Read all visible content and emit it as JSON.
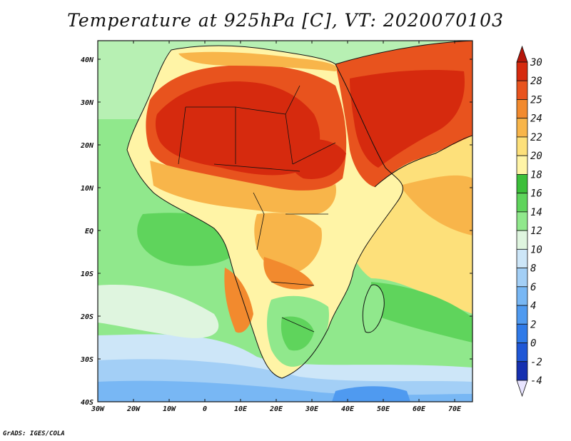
{
  "title": "Temperature at 925hPa [C], VT: 2020070103",
  "credit": "GrADS: IGES/COLA",
  "axes": {
    "lon_ticks": [
      "30W",
      "20W",
      "10W",
      "0",
      "10E",
      "20E",
      "30E",
      "40E",
      "50E",
      "60E",
      "70E"
    ],
    "lat_ticks": [
      "40N",
      "30N",
      "20N",
      "10N",
      "EQ",
      "10S",
      "20S",
      "30S",
      "40S"
    ]
  },
  "colorbar": {
    "levels": [
      "-4",
      "-2",
      "0",
      "2",
      "4",
      "6",
      "8",
      "10",
      "12",
      "14",
      "16",
      "18",
      "20",
      "22",
      "24",
      "25",
      "28",
      "30"
    ],
    "colors": [
      "#0a1a6e",
      "#1530b0",
      "#1f57d6",
      "#2f7ae8",
      "#4f9af0",
      "#78b7f4",
      "#a3cff6",
      "#cde6f8",
      "#dff5df",
      "#90e88c",
      "#5fd45c",
      "#3cbf3a",
      "#fff4a6",
      "#fde07a",
      "#f8b54a",
      "#f28a2e",
      "#e8531e",
      "#d62a0e",
      "#b5160a"
    ]
  },
  "palette": {
    "very_hot": "#d62a0e",
    "hot": "#e8531e",
    "warm": "#f28a2e",
    "mild": "#f8b54a",
    "cool": "#fde07a",
    "yellow": "#fff4a6",
    "green": "#3cbf3a",
    "light_green": "#90e88c",
    "pale": "#dff5df",
    "light_blue": "#a3cff6",
    "blue": "#78b7f4",
    "deep_blue": "#4f9af0"
  }
}
